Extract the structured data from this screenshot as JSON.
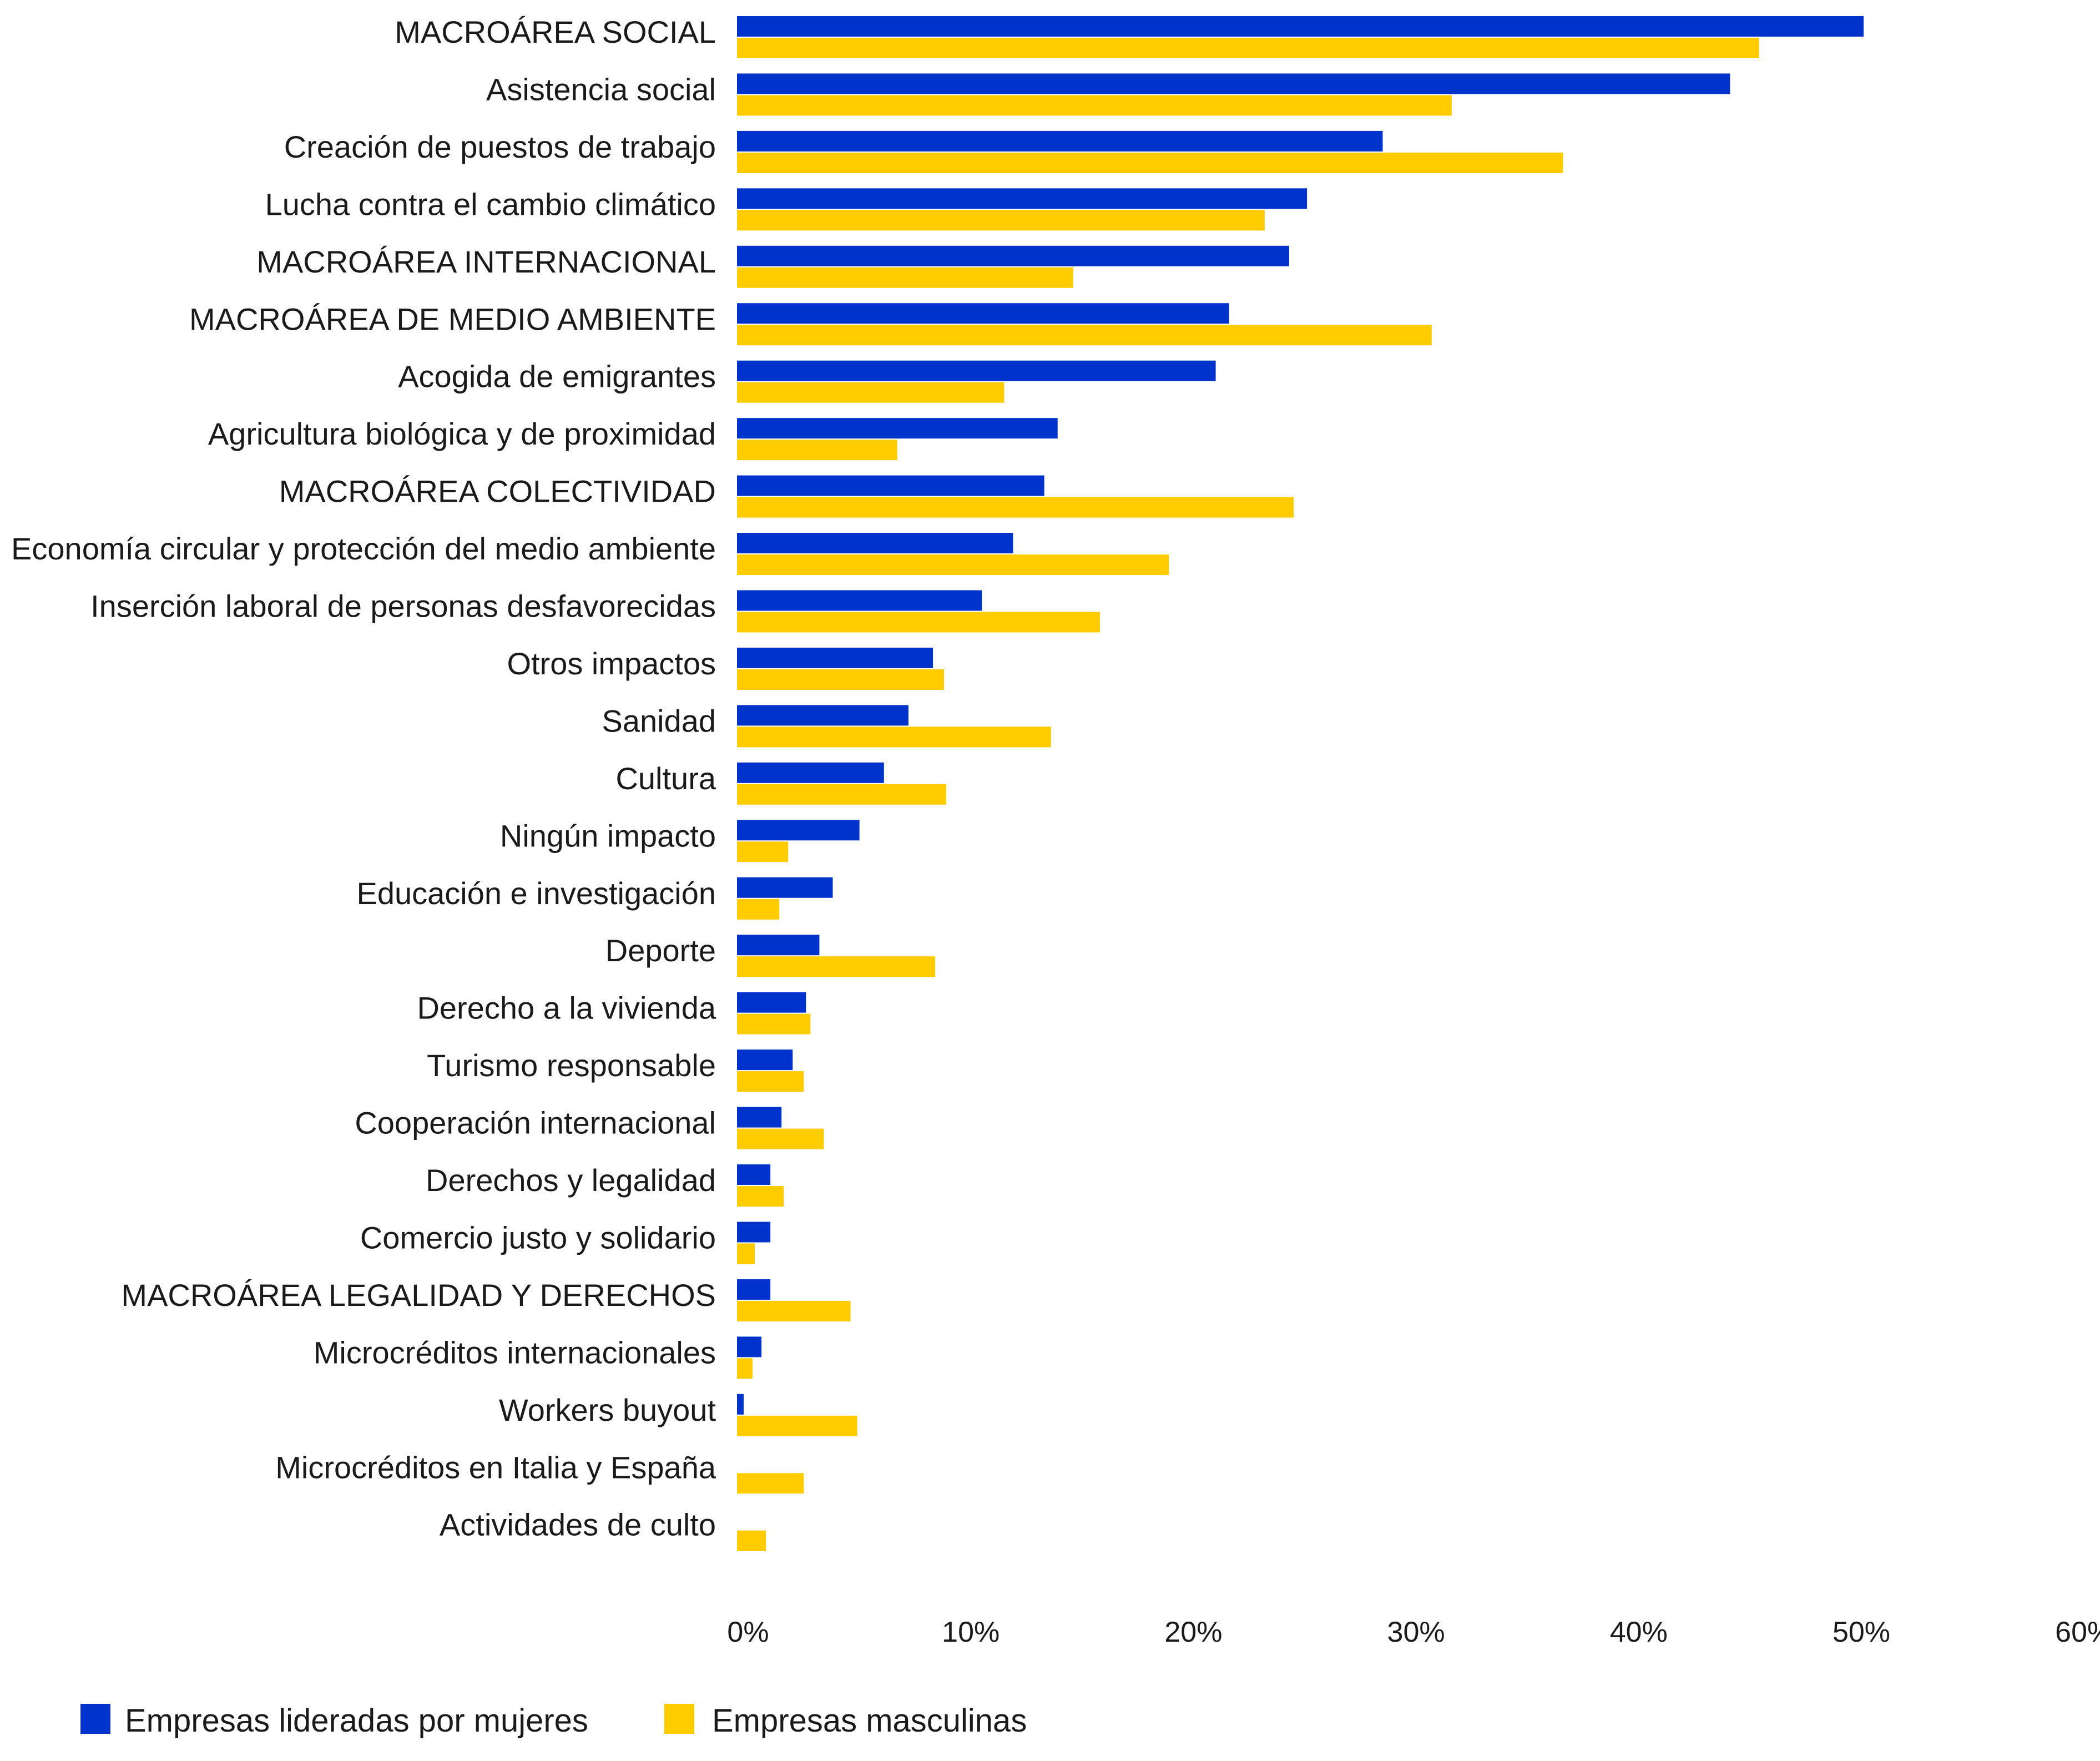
{
  "colors": {
    "series_women": "#0033CC",
    "series_men": "#FFCC00",
    "text": "#1a1a1a",
    "background": "#ffffff"
  },
  "chart_data": {
    "type": "bar",
    "orientation": "horizontal",
    "categories": [
      "MACROÁREA SOCIAL",
      "Asistencia social",
      "Creación de puestos de trabajo",
      "Lucha contra el cambio climático",
      "MACROÁREA INTERNACIONAL",
      "MACROÁREA DE MEDIO AMBIENTE",
      "Acogida de emigrantes",
      "Agricultura biológica y de proximidad",
      "MACROÁREA COLECTIVIDAD",
      "Economía circular y protección del medio ambiente",
      "Inserción laboral de personas desfavorecidas",
      "Otros impactos",
      "Sanidad",
      "Cultura",
      "Ningún impacto",
      "Educación e investigación",
      "Deporte",
      "Derecho a la vivienda",
      "Turismo responsable",
      "Cooperación internacional",
      "Derechos y legalidad",
      "Comercio justo y solidario",
      "MACROÁREA LEGALIDAD Y DERECHOS",
      "Microcréditos internacionales",
      "Workers buyout",
      "Microcréditos en Italia y España",
      "Actividades de culto"
    ],
    "series": [
      {
        "name": "Empresas lideradas por mujeres",
        "color": "#0033CC",
        "values": [
          50.6,
          44.6,
          29.0,
          25.6,
          24.8,
          22.1,
          21.5,
          14.4,
          13.8,
          12.4,
          11.0,
          8.8,
          7.7,
          6.6,
          5.5,
          4.3,
          3.7,
          3.1,
          2.5,
          2.0,
          1.5,
          1.5,
          1.5,
          1.1,
          0.3,
          0.0,
          0.0
        ]
      },
      {
        "name": "Empresas masculinas",
        "color": "#FFCC00",
        "values": [
          45.9,
          32.1,
          37.1,
          23.7,
          15.1,
          31.2,
          12.0,
          7.2,
          25.0,
          19.4,
          16.3,
          9.3,
          14.1,
          9.4,
          2.3,
          1.9,
          8.9,
          3.3,
          3.0,
          3.9,
          2.1,
          0.8,
          5.1,
          0.7,
          5.4,
          3.0,
          1.3
        ]
      }
    ],
    "xlim": [
      0,
      60
    ],
    "x_ticks": [
      0,
      10,
      20,
      30,
      40,
      50,
      60
    ],
    "x_tick_labels": [
      "0%",
      "10%",
      "20%",
      "30%",
      "40%",
      "50%",
      "60%"
    ],
    "title": "",
    "xlabel": "",
    "ylabel": "",
    "grid": false,
    "legend_position": "bottom-left"
  }
}
